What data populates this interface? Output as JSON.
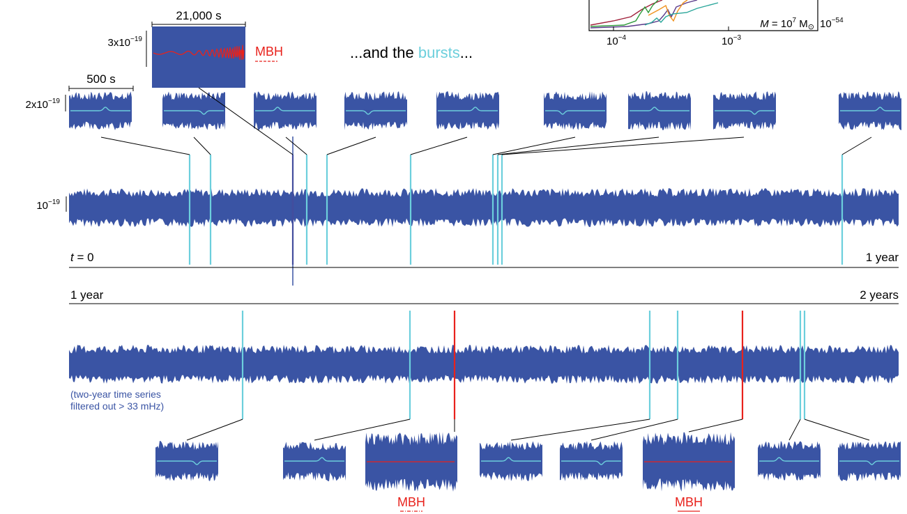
{
  "colors": {
    "noise": "#3a54a4",
    "burst": "#6ccfdc",
    "mbh": "#e8221c",
    "purple": "#5a3a8a",
    "green": "#2e9a3a",
    "orange": "#f0921e",
    "darkred": "#a0203a",
    "text_blue": "#3a54a4",
    "burst_word": "#6ccfdc"
  },
  "inset": {
    "mass_label_M": "M",
    "mass_label_eq": " = 10",
    "mass_label_exp": "7",
    "mass_label_unit": " M",
    "mass_label_sun": "⊙",
    "y_tick_base": "10",
    "y_tick_exp": "−54",
    "x_ticks": [
      {
        "base": "10",
        "exp": "−4"
      },
      {
        "base": "10",
        "exp": "−3"
      }
    ]
  },
  "headline": {
    "pre": "...and the ",
    "word": "bursts",
    "post": "..."
  },
  "mbh_zoom": {
    "duration_label": "21,000 s",
    "amp_base": "3x10",
    "amp_exp": "−19",
    "tag": "MBH"
  },
  "burst_row": {
    "duration_label": "500 s",
    "amp_base": "2x10",
    "amp_exp": "−19"
  },
  "series1": {
    "amp_base": "10",
    "amp_exp": "−19",
    "start_t": "t",
    "start_eq": " = 0",
    "end_label": "1 year"
  },
  "series2": {
    "start_label": "1 year",
    "end_label": "2 years",
    "note_line1": "(two-year time series",
    "note_line2": " filtered out > 33 mHz)"
  },
  "bottom_tags": [
    "MBH",
    "MBH"
  ]
}
